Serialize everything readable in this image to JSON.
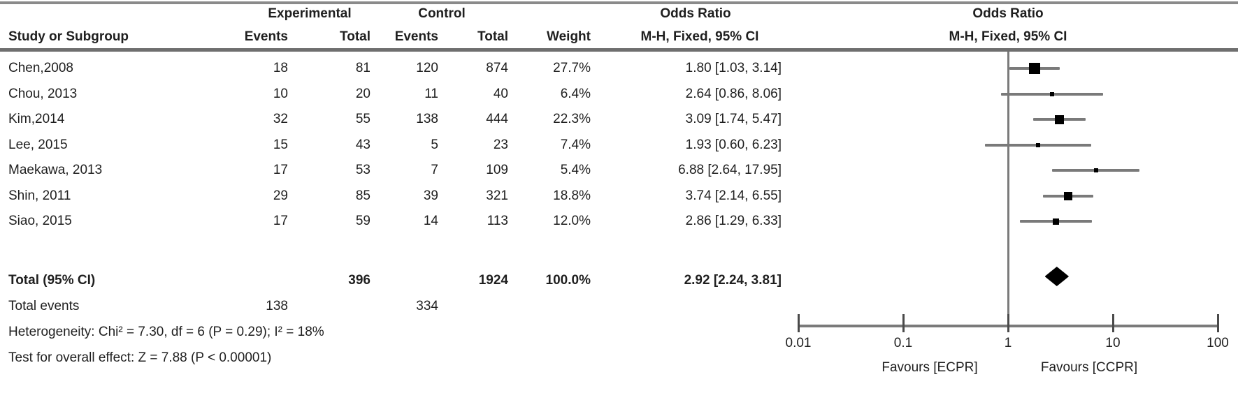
{
  "header": {
    "group_experimental": "Experimental",
    "group_control": "Control",
    "col_study": "Study or Subgroup",
    "col_events": "Events",
    "col_total": "Total",
    "col_weight": "Weight",
    "or_title": "Odds Ratio",
    "or_subtitle": "M-H, Fixed, 95% CI",
    "plot_title": "Odds Ratio",
    "plot_subtitle": "M-H, Fixed, 95% CI"
  },
  "chart_data": {
    "type": "scatter",
    "subtype": "forest-plot-odds-ratio",
    "effect_measure": "Odds Ratio, M-H, Fixed, 95% CI",
    "x_scale": "log",
    "xlim": [
      0.01,
      100
    ],
    "x_tick_labels": [
      "0.01",
      "0.1",
      "1",
      "10",
      "100"
    ],
    "x_tick_values": [
      0.01,
      0.1,
      1,
      10,
      100
    ],
    "favours_left": "Favours [ECPR]",
    "favours_right": "Favours [CCPR]",
    "studies": [
      {
        "name": "Chen,2008",
        "exp_events": "18",
        "exp_total": "81",
        "ctrl_events": "120",
        "ctrl_total": "874",
        "weight_label": "27.7%",
        "weight_pct": 27.7,
        "or": 1.8,
        "ci_low": 1.03,
        "ci_high": 3.14,
        "or_label": "1.80 [1.03, 3.14]"
      },
      {
        "name": "Chou, 2013",
        "exp_events": "10",
        "exp_total": "20",
        "ctrl_events": "11",
        "ctrl_total": "40",
        "weight_label": "6.4%",
        "weight_pct": 6.4,
        "or": 2.64,
        "ci_low": 0.86,
        "ci_high": 8.06,
        "or_label": "2.64 [0.86, 8.06]"
      },
      {
        "name": "Kim,2014",
        "exp_events": "32",
        "exp_total": "55",
        "ctrl_events": "138",
        "ctrl_total": "444",
        "weight_label": "22.3%",
        "weight_pct": 22.3,
        "or": 3.09,
        "ci_low": 1.74,
        "ci_high": 5.47,
        "or_label": "3.09 [1.74, 5.47]"
      },
      {
        "name": "Lee, 2015",
        "exp_events": "15",
        "exp_total": "43",
        "ctrl_events": "5",
        "ctrl_total": "23",
        "weight_label": "7.4%",
        "weight_pct": 7.4,
        "or": 1.93,
        "ci_low": 0.6,
        "ci_high": 6.23,
        "or_label": "1.93 [0.60, 6.23]"
      },
      {
        "name": "Maekawa, 2013",
        "exp_events": "17",
        "exp_total": "53",
        "ctrl_events": "7",
        "ctrl_total": "109",
        "weight_label": "5.4%",
        "weight_pct": 5.4,
        "or": 6.88,
        "ci_low": 2.64,
        "ci_high": 17.95,
        "or_label": "6.88 [2.64, 17.95]"
      },
      {
        "name": "Shin, 2011",
        "exp_events": "29",
        "exp_total": "85",
        "ctrl_events": "39",
        "ctrl_total": "321",
        "weight_label": "18.8%",
        "weight_pct": 18.8,
        "or": 3.74,
        "ci_low": 2.14,
        "ci_high": 6.55,
        "or_label": "3.74 [2.14, 6.55]"
      },
      {
        "name": "Siao, 2015",
        "exp_events": "17",
        "exp_total": "59",
        "ctrl_events": "14",
        "ctrl_total": "113",
        "weight_label": "12.0%",
        "weight_pct": 12.0,
        "or": 2.86,
        "ci_low": 1.29,
        "ci_high": 6.33,
        "or_label": "2.86 [1.29, 6.33]"
      }
    ],
    "total": {
      "label": "Total (95% CI)",
      "exp_total": "396",
      "ctrl_total": "1924",
      "weight_label": "100.0%",
      "or": 2.92,
      "ci_low": 2.24,
      "ci_high": 3.81,
      "or_label": "2.92 [2.24, 3.81]",
      "events_label": "Total events",
      "exp_events": "138",
      "ctrl_events": "334"
    },
    "heterogeneity": "Heterogeneity: Chi² = 7.30, df = 6 (P = 0.29); I² = 18%",
    "overall_effect": "Test for overall effect: Z = 7.88 (P < 0.00001)"
  }
}
